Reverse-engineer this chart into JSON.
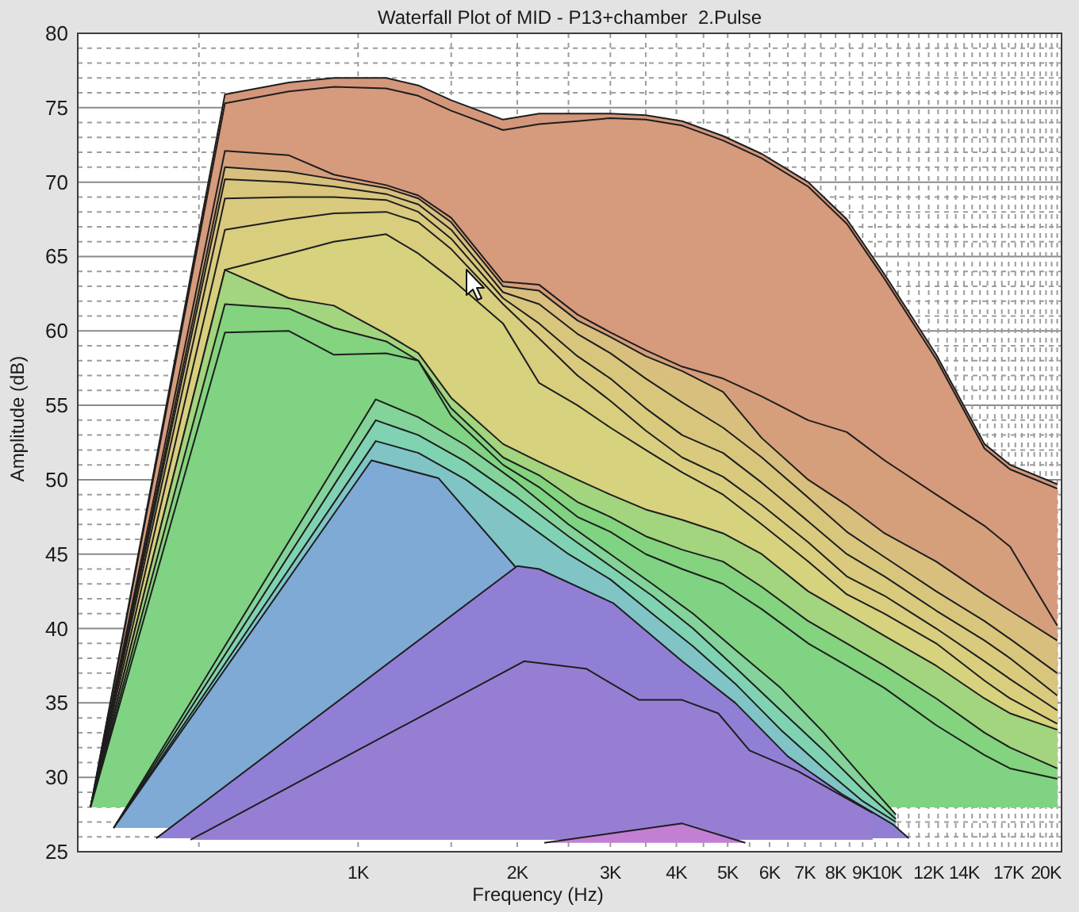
{
  "chart_data": {
    "type": "area",
    "title": "Waterfall Plot of MID - P13+chamber  2.Pulse",
    "xlabel": "Frequency (Hz)",
    "ylabel": "Amplitude (dB)",
    "log": "x",
    "grid": true,
    "xlim": [
      295,
      21400
    ],
    "ylim": [
      25,
      80
    ],
    "xticks": [
      {
        "value": 500,
        "label": null
      },
      {
        "value": 1000,
        "label": "1K"
      },
      {
        "value": 1500,
        "label": null
      },
      {
        "value": 2000,
        "label": "2K"
      },
      {
        "value": 2500,
        "label": null
      },
      {
        "value": 3000,
        "label": "3K"
      },
      {
        "value": 3500,
        "label": null
      },
      {
        "value": 4000,
        "label": "4K"
      },
      {
        "value": 4500,
        "label": null
      },
      {
        "value": 5000,
        "label": "5K"
      },
      {
        "value": 5500,
        "label": null
      },
      {
        "value": 6000,
        "label": "6K"
      },
      {
        "value": 6500,
        "label": null
      },
      {
        "value": 7000,
        "label": "7K"
      },
      {
        "value": 7500,
        "label": null
      },
      {
        "value": 8000,
        "label": "8K"
      },
      {
        "value": 8500,
        "label": null
      },
      {
        "value": 9000,
        "label": "9K"
      },
      {
        "value": 9500,
        "label": null
      },
      {
        "value": 10000,
        "label": "10K"
      },
      {
        "value": 10500,
        "label": null
      },
      {
        "value": 11000,
        "label": null
      },
      {
        "value": 11500,
        "label": null
      },
      {
        "value": 12000,
        "label": "12K"
      },
      {
        "value": 12500,
        "label": null
      },
      {
        "value": 13000,
        "label": null
      },
      {
        "value": 13500,
        "label": null
      },
      {
        "value": 14000,
        "label": "14K"
      },
      {
        "value": 14500,
        "label": null
      },
      {
        "value": 15000,
        "label": null
      },
      {
        "value": 15500,
        "label": null
      },
      {
        "value": 16000,
        "label": null
      },
      {
        "value": 16500,
        "label": null
      },
      {
        "value": 17000,
        "label": "17K"
      },
      {
        "value": 17500,
        "label": null
      },
      {
        "value": 18000,
        "label": null
      },
      {
        "value": 18500,
        "label": null
      },
      {
        "value": 19000,
        "label": null
      },
      {
        "value": 19500,
        "label": null
      },
      {
        "value": 20000,
        "label": "20K"
      },
      {
        "value": 20500,
        "label": null
      },
      {
        "value": 21000,
        "label": null
      }
    ],
    "yticks": [
      25,
      {
        "value": 26,
        "label": null
      },
      {
        "value": 27,
        "label": null
      },
      {
        "value": 28,
        "label": null
      },
      {
        "value": 29,
        "label": null
      },
      30,
      {
        "value": 31,
        "label": null
      },
      {
        "value": 32,
        "label": null
      },
      {
        "value": 33,
        "label": null
      },
      {
        "value": 34,
        "label": null
      },
      35,
      {
        "value": 36,
        "label": null
      },
      {
        "value": 37,
        "label": null
      },
      {
        "value": 38,
        "label": null
      },
      {
        "value": 39,
        "label": null
      },
      40,
      {
        "value": 41,
        "label": null
      },
      {
        "value": 42,
        "label": null
      },
      {
        "value": 43,
        "label": null
      },
      {
        "value": 44,
        "label": null
      },
      45,
      {
        "value": 46,
        "label": null
      },
      {
        "value": 47,
        "label": null
      },
      {
        "value": 48,
        "label": null
      },
      {
        "value": 49,
        "label": null
      },
      50,
      {
        "value": 51,
        "label": null
      },
      {
        "value": 52,
        "label": null
      },
      {
        "value": 53,
        "label": null
      },
      {
        "value": 54,
        "label": null
      },
      55,
      {
        "value": 56,
        "label": null
      },
      {
        "value": 57,
        "label": null
      },
      {
        "value": 58,
        "label": null
      },
      {
        "value": 59,
        "label": null
      },
      60,
      {
        "value": 61,
        "label": null
      },
      {
        "value": 62,
        "label": null
      },
      {
        "value": 63,
        "label": null
      },
      {
        "value": 64,
        "label": null
      },
      65,
      {
        "value": 66,
        "label": null
      },
      {
        "value": 67,
        "label": null
      },
      {
        "value": 68,
        "label": null
      },
      {
        "value": 69,
        "label": null
      },
      70,
      {
        "value": 71,
        "label": null
      },
      {
        "value": 72,
        "label": null
      },
      {
        "value": 73,
        "label": null
      },
      {
        "value": 74,
        "label": null
      },
      75,
      {
        "value": 76,
        "label": null
      },
      {
        "value": 77,
        "label": null
      },
      {
        "value": 78,
        "label": null
      },
      {
        "value": 79,
        "label": null
      },
      80
    ],
    "x": [
      312,
      560,
      740,
      900,
      1130,
      1300,
      1500,
      1880,
      2200,
      2600,
      3000,
      3500,
      4100,
      4900,
      5800,
      7100,
      8400,
      9900,
      12400,
      15300,
      17100,
      21000
    ],
    "series": [
      {
        "color": "#d4977b",
        "values": [
          28,
          75.9,
          76.7,
          77,
          77,
          76.5,
          75.5,
          74.2,
          74.6,
          74.6,
          74.6,
          74.5,
          74.1,
          73.1,
          71.9,
          70,
          67.5,
          63.8,
          58.4,
          52.4,
          51,
          49.7
        ]
      },
      {
        "color": "#d69a7c",
        "values": [
          28,
          75.3,
          76.1,
          76.4,
          76.3,
          75.8,
          74.8,
          73.5,
          73.9,
          74.1,
          74.3,
          74.2,
          73.8,
          72.8,
          71.6,
          69.7,
          67.2,
          63.5,
          58.1,
          52.1,
          50.7,
          49.4
        ]
      },
      {
        "color": "#d59f7b",
        "values": [
          28,
          72.1,
          71.8,
          70.5,
          69.8,
          69.1,
          67.6,
          63.3,
          63.1,
          61.1,
          59.9,
          58.7,
          57.6,
          56.8,
          55.6,
          54,
          53.2,
          51.3,
          49,
          46.9,
          45.5,
          40.2
        ]
      },
      {
        "color": "#d8bf7d",
        "values": [
          28,
          71,
          70.7,
          70.2,
          69.6,
          68.9,
          67.3,
          63,
          62.7,
          60.7,
          59.6,
          58.3,
          57.3,
          55.9,
          52.8,
          50,
          48.3,
          46.4,
          44.5,
          42.3,
          41.2,
          39.2
        ]
      },
      {
        "color": "#d9c67d",
        "values": [
          28,
          70.2,
          70,
          69.7,
          69.2,
          68.5,
          66.8,
          62.6,
          61.8,
          59.8,
          58.5,
          56.8,
          55.2,
          53.5,
          51.5,
          48.8,
          46.5,
          44.8,
          42.5,
          40.5,
          39.3,
          37
        ]
      },
      {
        "color": "#d9ca7e",
        "values": [
          28,
          68.9,
          69,
          69,
          68.8,
          68,
          66.2,
          62.2,
          60.5,
          58.3,
          56.8,
          54.8,
          53,
          51.8,
          49.8,
          47.2,
          45,
          43.5,
          41.2,
          39.2,
          38,
          35.5
        ]
      },
      {
        "color": "#d8ce7e",
        "values": [
          28,
          66.8,
          67.5,
          67.9,
          68,
          67.3,
          65.5,
          61.8,
          59.5,
          57,
          55.3,
          53.3,
          51.5,
          50.2,
          48.3,
          45.8,
          43.5,
          42.2,
          40,
          37.8,
          36.6,
          34.5
        ]
      },
      {
        "color": "#d6d27e",
        "values": [
          28,
          64.1,
          65.2,
          66,
          66.5,
          65.2,
          63.5,
          60.5,
          56.5,
          55,
          53.5,
          52,
          50.5,
          49,
          47,
          44.5,
          42.3,
          41,
          39,
          36.5,
          35.3,
          33.6
        ]
      },
      {
        "color": "#a3d47e",
        "values": [
          28,
          64.1,
          62.2,
          61.7,
          59.8,
          58.5,
          55.5,
          52.4,
          51.2,
          50,
          49,
          48,
          47.3,
          46.4,
          45,
          42.5,
          41,
          39.5,
          37.5,
          35.3,
          34.3,
          33.2
        ]
      },
      {
        "color": "#84d37f",
        "values": [
          28,
          61.8,
          61.5,
          60.2,
          59.3,
          58,
          54.8,
          51.5,
          50.3,
          48.5,
          47.5,
          46.2,
          45.3,
          44.5,
          42.8,
          40.5,
          39,
          37.5,
          35.3,
          33,
          32,
          30.6
        ]
      },
      {
        "color": "#7fd382",
        "values": [
          28,
          59.9,
          60,
          58.4,
          58.5,
          58,
          54.3,
          51,
          49.5,
          47.5,
          46.5,
          45,
          44,
          43,
          41.3,
          39,
          37.5,
          36,
          33.5,
          31.5,
          30.6,
          29.9
        ]
      },
      {
        "color": "#84d39a",
        "x": [
          345,
          1080,
          1300,
          1600,
          2000,
          2500,
          3000,
          3600,
          4300,
          5200,
          6300,
          7600,
          9000,
          10400
        ],
        "values": [
          26.6,
          55.4,
          54.2,
          52.3,
          49.8,
          47,
          45,
          43,
          41,
          38.5,
          36,
          33,
          30,
          27.5
        ]
      },
      {
        "color": "#80d3b2",
        "x": [
          345,
          1080,
          1300,
          1600,
          2000,
          2500,
          3000,
          3600,
          4300,
          5200,
          6300,
          7600,
          9000,
          10400
        ],
        "values": [
          26.6,
          54,
          53,
          51.2,
          48.8,
          46.2,
          44.2,
          42.2,
          40,
          37.3,
          34.5,
          31.8,
          29.2,
          27.2
        ]
      },
      {
        "color": "#80c4c6",
        "x": [
          345,
          1080,
          1300,
          1600,
          2000,
          2500,
          3000,
          3600,
          4300,
          5200,
          6300,
          7600,
          9000,
          10400
        ],
        "values": [
          26.6,
          52.6,
          51.8,
          50,
          47.5,
          45,
          43.3,
          41,
          38.8,
          36.2,
          33.2,
          30.6,
          28.4,
          27
        ]
      },
      {
        "color": "#7faad6",
        "x": [
          345,
          1060,
          1420,
          2000
        ],
        "values": [
          26.6,
          51.3,
          50.1,
          44
        ]
      },
      {
        "color": "#917fd6",
        "x": [
          415,
          2000,
          2200,
          3040,
          4100,
          5170,
          6500,
          8200,
          10300,
          11000
        ],
        "values": [
          25.9,
          44.2,
          44,
          41.7,
          37.8,
          35,
          31.4,
          28.9,
          26.8,
          25.9
        ]
      },
      {
        "color": "#967fd3",
        "x": [
          482,
          2060,
          2700,
          3400,
          4100,
          4800,
          5500,
          6800,
          9400
        ],
        "values": [
          25.8,
          37.8,
          37.3,
          35.2,
          35.2,
          34.3,
          31.8,
          30.4,
          27.6
        ]
      },
      {
        "color": "#c27fd3",
        "x": [
          2250,
          4100,
          5400
        ],
        "values": [
          25.6,
          26.9,
          25.6
        ]
      }
    ]
  }
}
